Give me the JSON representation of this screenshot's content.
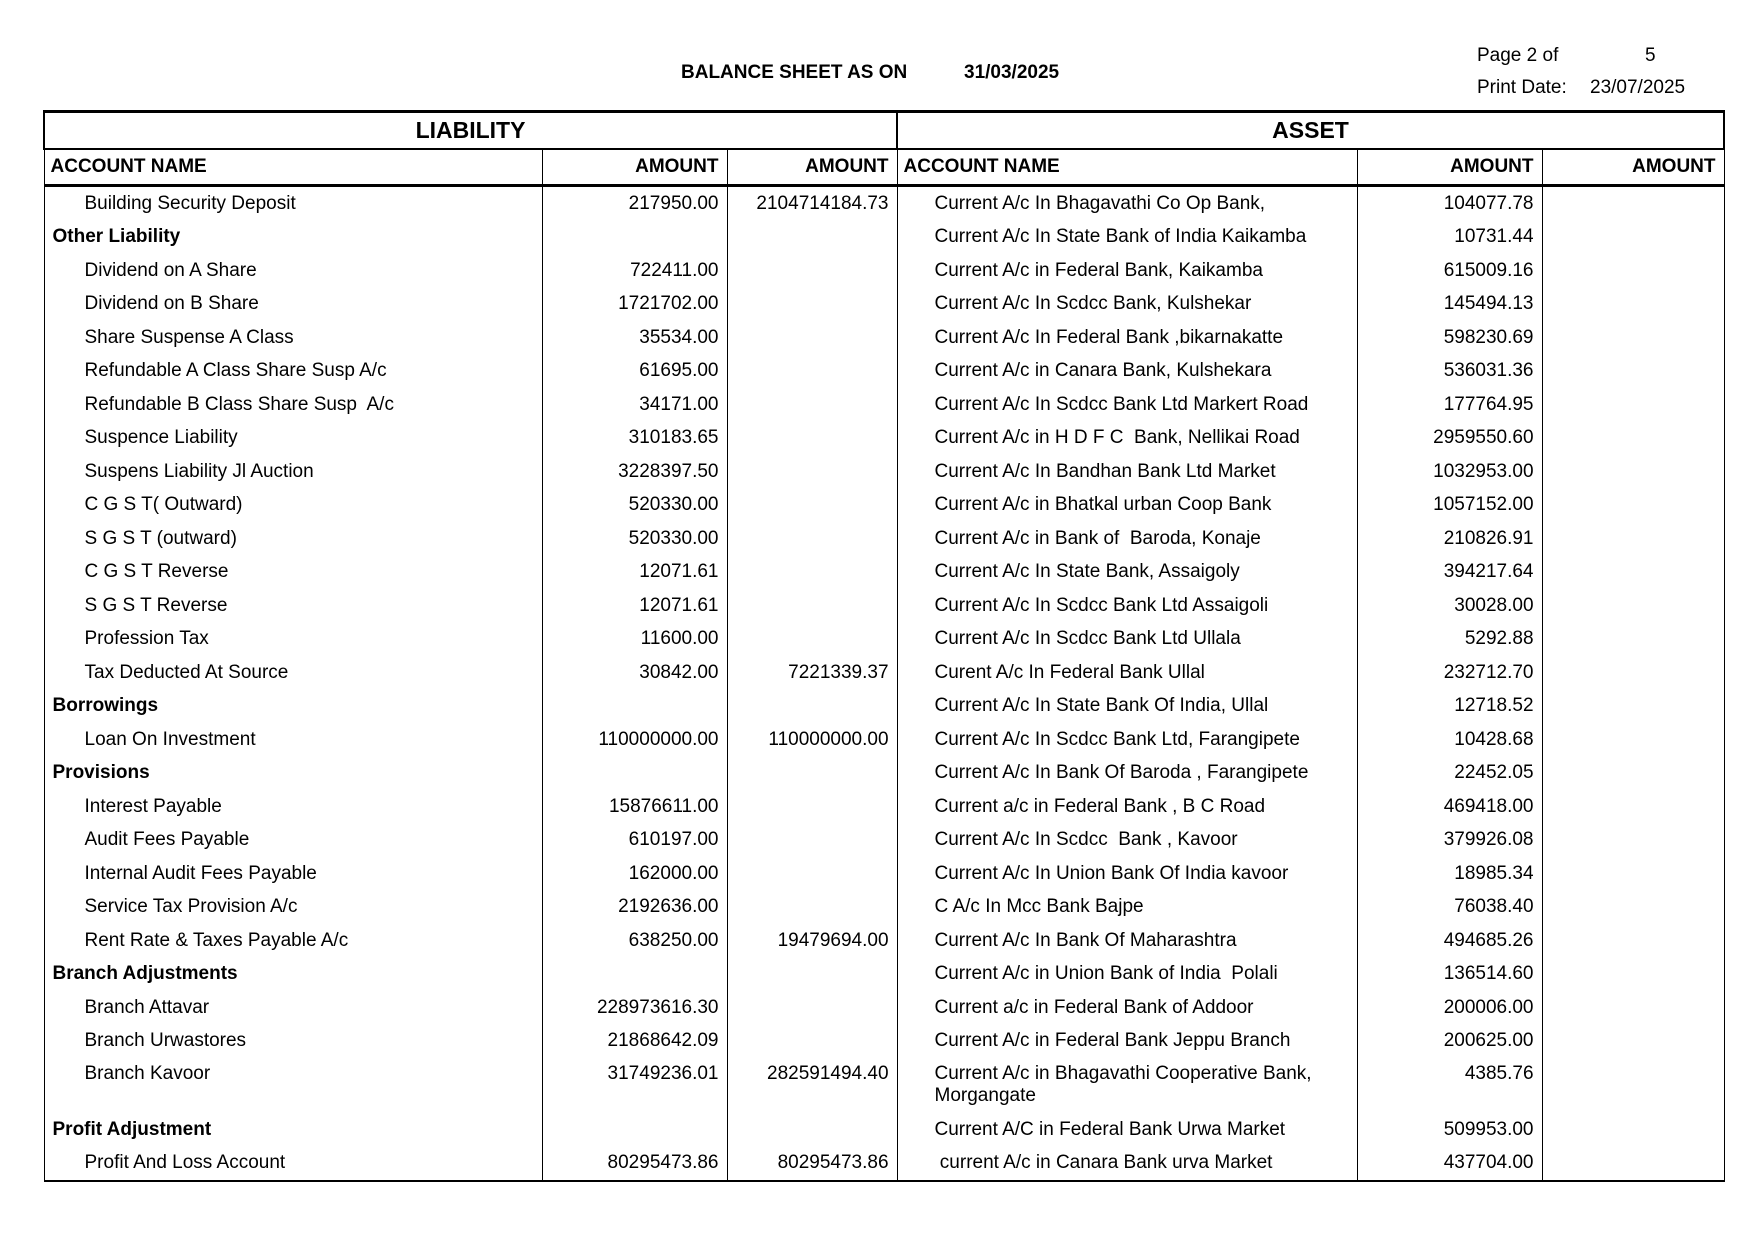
{
  "title": "BALANCE SHEET AS ON",
  "as_on_date": "31/03/2025",
  "page_label": "Page 2 of",
  "page_total": "5",
  "print_date_label": "Print Date:",
  "print_date": "23/07/2025",
  "sections": {
    "liability": "LIABILITY",
    "asset": "ASSET"
  },
  "columns": {
    "account_name": "ACCOUNT NAME",
    "amount": "AMOUNT"
  },
  "rows": [
    {
      "l_name": "Building Security Deposit",
      "l_amt": "217950.00",
      "l_total": "2104714184.73",
      "a_name": "Current A/c In Bhagavathi Co Op Bank,",
      "a_amt": "104077.78"
    },
    {
      "l_name": "Other Liability",
      "group": true,
      "a_name": "Current A/c In State Bank of India Kaikamba",
      "a_amt": "10731.44"
    },
    {
      "l_name": "Dividend on A Share",
      "l_amt": "722411.00",
      "a_name": "Current A/c in Federal Bank, Kaikamba",
      "a_amt": "615009.16"
    },
    {
      "l_name": "Dividend on B Share",
      "l_amt": "1721702.00",
      "a_name": "Current A/c In Scdcc Bank, Kulshekar",
      "a_amt": "145494.13"
    },
    {
      "l_name": "Share Suspense A Class",
      "l_amt": "35534.00",
      "a_name": "Current A/c In Federal Bank ,bikarnakatte",
      "a_amt": "598230.69"
    },
    {
      "l_name": "Refundable A Class Share Susp A/c",
      "l_amt": "61695.00",
      "a_name": "Current A/c in Canara Bank, Kulshekara",
      "a_amt": "536031.36"
    },
    {
      "l_name": "Refundable B Class Share Susp  A/c",
      "l_amt": "34171.00",
      "a_name": "Current A/c In Scdcc Bank Ltd Markert Road",
      "a_amt": "177764.95"
    },
    {
      "l_name": "Suspence Liability",
      "l_amt": "310183.65",
      "a_name": "Current A/c in H D F C  Bank, Nellikai Road",
      "a_amt": "2959550.60"
    },
    {
      "l_name": "Suspens Liability Jl Auction",
      "l_amt": "3228397.50",
      "a_name": "Current A/c In Bandhan Bank Ltd Market",
      "a_amt": "1032953.00"
    },
    {
      "l_name": "C G S T( Outward)",
      "l_amt": "520330.00",
      "a_name": "Current A/c in Bhatkal urban Coop Bank",
      "a_amt": "1057152.00"
    },
    {
      "l_name": "S G S T (outward)",
      "l_amt": "520330.00",
      "a_name": "Current A/c in Bank of  Baroda, Konaje",
      "a_amt": "210826.91"
    },
    {
      "l_name": "C G S T Reverse",
      "l_amt": "12071.61",
      "a_name": "Current A/c In State Bank, Assaigoly",
      "a_amt": "394217.64"
    },
    {
      "l_name": "S G S T Reverse",
      "l_amt": "12071.61",
      "a_name": "Current A/c In Scdcc Bank Ltd Assaigoli",
      "a_amt": "30028.00"
    },
    {
      "l_name": "Profession Tax",
      "l_amt": "11600.00",
      "a_name": "Current A/c In Scdcc Bank Ltd Ullala",
      "a_amt": "5292.88"
    },
    {
      "l_name": "Tax Deducted At Source",
      "l_amt": "30842.00",
      "l_total": "7221339.37",
      "a_name": "Curent A/c In Federal Bank Ullal",
      "a_amt": "232712.70"
    },
    {
      "l_name": "Borrowings",
      "group": true,
      "a_name": "Current A/c In State Bank Of India, Ullal",
      "a_amt": "12718.52"
    },
    {
      "l_name": "Loan On Investment",
      "l_amt": "110000000.00",
      "l_total": "110000000.00",
      "a_name": "Current A/c In Scdcc Bank Ltd, Farangipete",
      "a_amt": "10428.68"
    },
    {
      "l_name": "Provisions",
      "group": true,
      "a_name": "Current A/c In Bank Of Baroda , Farangipete",
      "a_amt": "22452.05"
    },
    {
      "l_name": "Interest Payable",
      "l_amt": "15876611.00",
      "a_name": "Current a/c in Federal Bank , B C Road",
      "a_amt": "469418.00"
    },
    {
      "l_name": "Audit Fees Payable",
      "l_amt": "610197.00",
      "a_name": "Current A/c In Scdcc  Bank , Kavoor",
      "a_amt": "379926.08"
    },
    {
      "l_name": "Internal Audit Fees Payable",
      "l_amt": "162000.00",
      "a_name": "Current A/c In Union Bank Of India kavoor",
      "a_amt": "18985.34"
    },
    {
      "l_name": "Service Tax Provision A/c",
      "l_amt": "2192636.00",
      "a_name": "C A/c In Mcc Bank Bajpe",
      "a_amt": "76038.40"
    },
    {
      "l_name": "Rent Rate & Taxes Payable A/c",
      "l_amt": "638250.00",
      "l_total": "19479694.00",
      "a_name": "Current A/c In Bank Of Maharashtra",
      "a_amt": "494685.26"
    },
    {
      "l_name": "Branch Adjustments",
      "group": true,
      "a_name": "Current A/c in Union Bank of India  Polali",
      "a_amt": "136514.60"
    },
    {
      "l_name": "Branch Attavar",
      "l_amt": "228973616.30",
      "a_name": "Current a/c in Federal Bank of Addoor",
      "a_amt": "200006.00"
    },
    {
      "l_name": "Branch Urwastores",
      "l_amt": "21868642.09",
      "a_name": "Current A/c in Federal Bank Jeppu Branch",
      "a_amt": "200625.00"
    },
    {
      "l_name": "Branch Kavoor",
      "l_amt": "31749236.01",
      "l_total": "282591494.40",
      "a_name": "Current A/c in Bhagavathi Cooperative Bank, Morgangate",
      "a_amt": "4385.76",
      "tall": true
    },
    {
      "l_name": "Profit Adjustment",
      "group": true,
      "a_name": "Current A/C in Federal Bank Urwa Market",
      "a_amt": "509953.00"
    },
    {
      "l_name": "Profit And Loss Account",
      "l_amt": "80295473.86",
      "l_total": "80295473.86",
      "a_name": " current A/c in Canara Bank urva Market",
      "a_amt": "437704.00"
    }
  ]
}
